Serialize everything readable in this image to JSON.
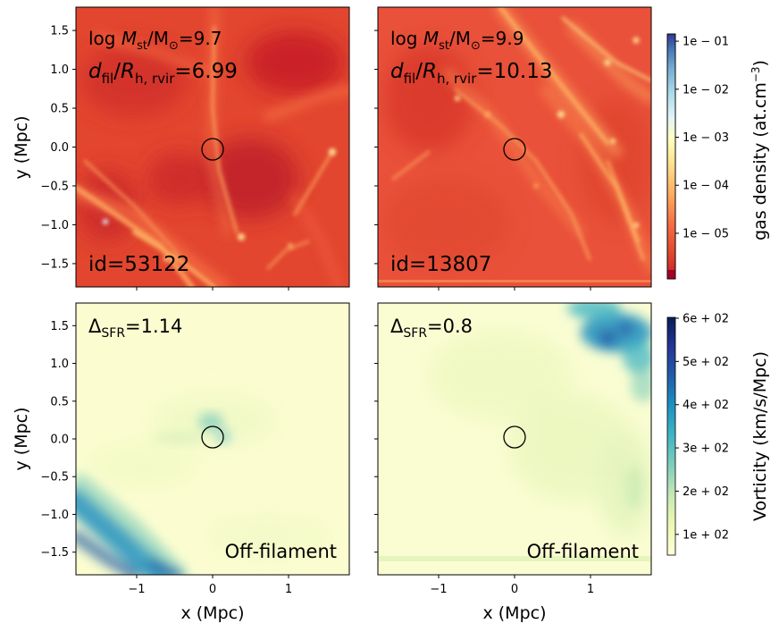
{
  "figure": {
    "colors": {
      "density_map": [
        "#d73027",
        "#f46d43",
        "#fdae61",
        "#fee090",
        "#ffffbf",
        "#e0f3f8",
        "#abd9e9",
        "#74add1",
        "#4575b4",
        "#313695"
      ],
      "vorticity_map": [
        "#ffffd9",
        "#edf8b1",
        "#c7e9b4",
        "#7fcdbb",
        "#41b6c4",
        "#1d91c0",
        "#225ea8",
        "#253494",
        "#081d58"
      ],
      "marker_circle": "#000000"
    },
    "colorbars": [
      {
        "id": "density",
        "label": "gas density (at.cm$^{-3}$)",
        "label_text": "gas density (at.cm",
        "label_sup": "−3",
        "label_close": ")",
        "scale": "log",
        "ticks": [
          "1e − 01",
          "1e − 02",
          "1e − 03",
          "1e − 04",
          "1e − 05"
        ]
      },
      {
        "id": "vorticity",
        "label": "Vorticity (km/s/Mpc)",
        "scale": "linear",
        "ticks": [
          "6e + 02",
          "5e + 02",
          "4e + 02",
          "3e + 02",
          "2e + 02",
          "1e + 02"
        ]
      }
    ],
    "axes": {
      "xlabel": "x (Mpc)",
      "ylabel": "y (Mpc)",
      "xlim": [
        -1.8,
        1.8
      ],
      "ylim": [
        -1.8,
        1.8
      ],
      "x_tick_labels": [
        "−1",
        "0",
        "1"
      ],
      "y_tick_labels": [
        "1.5",
        "1.0",
        "0.5",
        "0.0",
        "−0.5",
        "−1.0",
        "−1.5"
      ]
    },
    "panels": [
      {
        "row": "top",
        "col": "left",
        "field": "gas density",
        "annotations": {
          "mass_prefix": "log ",
          "mass_var": "M",
          "mass_sub": "st",
          "mass_rest": "/M",
          "mass_odot": "⊙",
          "mass_value": "=9.7",
          "dfil_var": "d",
          "dfil_sub": "fil",
          "dfil_slash": "/",
          "dfil_var2": "R",
          "dfil_sub2": "h, rvir",
          "dfil_value": "=6.99",
          "id_text": "id=53122"
        }
      },
      {
        "row": "top",
        "col": "right",
        "field": "gas density",
        "annotations": {
          "mass_prefix": "log ",
          "mass_var": "M",
          "mass_sub": "st",
          "mass_rest": "/M",
          "mass_odot": "⊙",
          "mass_value": "=9.9",
          "dfil_var": "d",
          "dfil_sub": "fil",
          "dfil_slash": "/",
          "dfil_var2": "R",
          "dfil_sub2": "h, rvir",
          "dfil_value": "=10.13",
          "id_text": "id=13807"
        }
      },
      {
        "row": "bottom",
        "col": "left",
        "field": "vorticity",
        "annotations": {
          "delta": "Δ",
          "delta_sub": "SFR",
          "delta_value": "=1.14",
          "status": "Off-filament"
        }
      },
      {
        "row": "bottom",
        "col": "right",
        "field": "vorticity",
        "annotations": {
          "delta": "Δ",
          "delta_sub": "SFR",
          "delta_value": "=0.8",
          "status": "Off-filament"
        }
      }
    ]
  },
  "chart_data": {
    "type": "heatmap",
    "panels": [
      {
        "quantity": "gas density",
        "galaxy_id": 53122,
        "log_Mst_over_Msun": 9.7,
        "dfil_over_Rh_rvir": 6.99,
        "marker_center": [
          0.0,
          0.0
        ]
      },
      {
        "quantity": "gas density",
        "galaxy_id": 13807,
        "log_Mst_over_Msun": 9.9,
        "dfil_over_Rh_rvir": 10.13,
        "marker_center": [
          0.0,
          0.0
        ]
      },
      {
        "quantity": "vorticity",
        "delta_SFR": 1.14,
        "classification": "Off-filament",
        "marker_center": [
          0.0,
          0.0
        ]
      },
      {
        "quantity": "vorticity",
        "delta_SFR": 0.8,
        "classification": "Off-filament",
        "marker_center": [
          0.0,
          0.0
        ]
      }
    ],
    "xlabel": "x (Mpc)",
    "ylabel": "y (Mpc)",
    "xlim": [
      -1.8,
      1.8
    ],
    "ylim": [
      -1.8,
      1.8
    ],
    "x_ticks": [
      -1,
      0,
      1
    ],
    "y_ticks": [
      -1.5,
      -1.0,
      -0.5,
      0.0,
      0.5,
      1.0,
      1.5
    ],
    "density_colorbar_ticks": [
      0.1,
      0.01,
      0.001,
      0.0001,
      1e-05
    ],
    "vorticity_colorbar_ticks": [
      600,
      500,
      400,
      300,
      200,
      100
    ]
  }
}
